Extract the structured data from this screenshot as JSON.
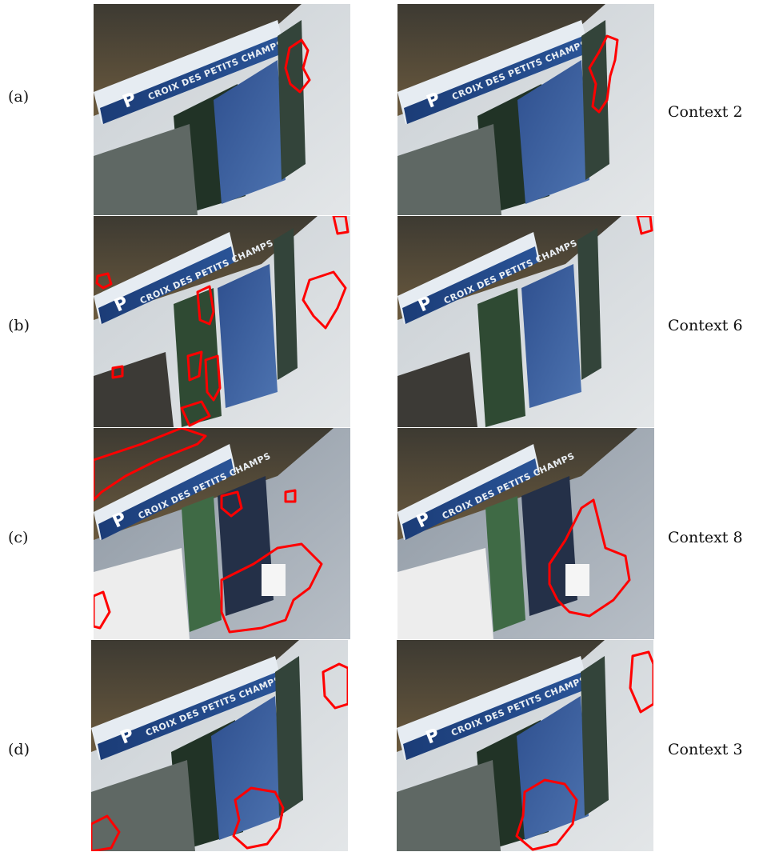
{
  "figure": {
    "contour_color": "#ff0000",
    "sign_color": "#1d3f7a",
    "rows": [
      {
        "label": "(a)",
        "context": "Context 2",
        "sign_letter": "P",
        "sign_text": "CROIX DES PETITS CHAMPS"
      },
      {
        "label": "(b)",
        "context": "Context 6",
        "sign_letter": "P",
        "sign_text": "CROIX DES PETITS CHAMPS"
      },
      {
        "label": "(c)",
        "context": "Context 8",
        "sign_letter": "P",
        "sign_text": "CROIX DES PETITS CHAMPS"
      },
      {
        "label": "(d)",
        "context": "Context 3",
        "sign_letter": "P",
        "sign_text": "CROIX DES PETITS CHAMPS"
      }
    ]
  }
}
